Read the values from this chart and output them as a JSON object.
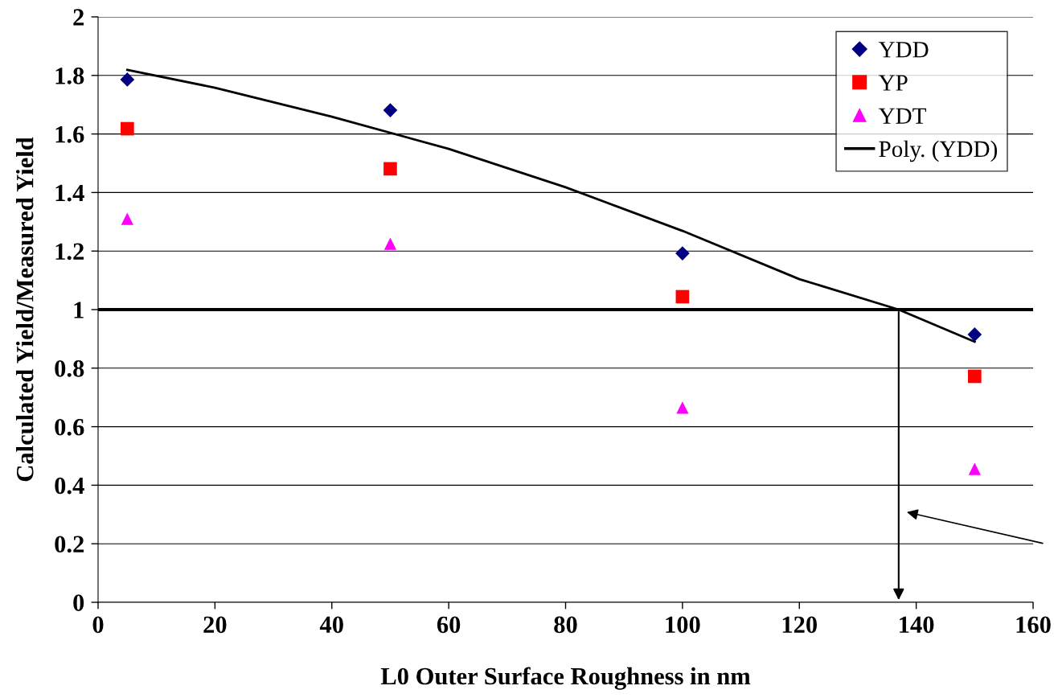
{
  "chart_data": {
    "type": "scatter",
    "xlabel": "L0 Outer Surface Roughness in nm",
    "ylabel": "Calculated Yield/Measured Yield",
    "series": [
      {
        "name": "YDD",
        "marker": "diamond",
        "color": "#000080",
        "x": [
          5,
          50,
          100,
          150
        ],
        "values": [
          1.786,
          1.681,
          1.192,
          0.915
        ]
      },
      {
        "name": "YP",
        "marker": "square",
        "color": "#ff0000",
        "x": [
          5,
          50,
          100,
          150
        ],
        "values": [
          1.618,
          1.481,
          1.044,
          0.772
        ]
      },
      {
        "name": "YDT",
        "marker": "triangle",
        "color": "#ff00ff",
        "x": [
          5,
          50,
          100,
          150
        ],
        "values": [
          1.31,
          1.225,
          0.665,
          0.456
        ]
      },
      {
        "name": "Poly. (YDD)",
        "type": "line",
        "marker": "none",
        "color": "#000000",
        "x": [
          5,
          20,
          40,
          60,
          80,
          100,
          120,
          137,
          150
        ],
        "values": [
          1.819,
          1.758,
          1.659,
          1.549,
          1.418,
          1.269,
          1.104,
          1.0,
          0.89
        ]
      }
    ],
    "ref_lines": [
      {
        "axis": "y",
        "value": 1,
        "color": "#000000"
      }
    ],
    "xlim": [
      0,
      160
    ],
    "xticks": [
      0,
      20,
      40,
      60,
      80,
      100,
      120,
      140,
      160
    ],
    "ylim": [
      0,
      2
    ],
    "yticks": [
      0,
      0.2,
      0.4,
      0.6,
      0.8,
      1,
      1.2,
      1.4,
      1.6,
      1.8,
      2
    ],
    "grid": "y",
    "legend": "top right"
  }
}
